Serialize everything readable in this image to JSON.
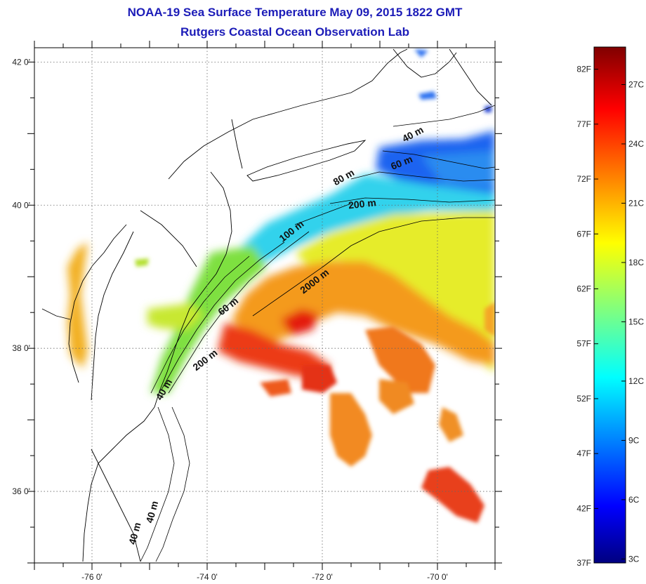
{
  "title": "NOAA-19 Sea Surface Temperature May 09, 2015 1822 GMT",
  "subtitle": "Rutgers Coastal Ocean Observation Lab",
  "lat_ticks": [
    {
      "value": 42,
      "label": "42 0'"
    },
    {
      "value": 40,
      "label": "40 0'"
    },
    {
      "value": 38,
      "label": "38 0'"
    },
    {
      "value": 36,
      "label": "36 0'"
    }
  ],
  "lon_ticks": [
    {
      "value": -76,
      "label": "-76 0'"
    },
    {
      "value": -74,
      "label": "-74 0'"
    },
    {
      "value": -72,
      "label": "-72 0'"
    },
    {
      "value": -70,
      "label": "-70 0'"
    }
  ],
  "map_extent": {
    "lon": [
      -77,
      -69
    ],
    "lat": [
      35,
      42.2
    ]
  },
  "contour_labels": [
    {
      "text": "40 m",
      "lon": -70.4,
      "lat": 40.95
    },
    {
      "text": "60 m",
      "lon": -70.6,
      "lat": 40.55
    },
    {
      "text": "80 m",
      "lon": -71.6,
      "lat": 40.35
    },
    {
      "text": "200 m",
      "lon": -71.3,
      "lat": 39.97
    },
    {
      "text": "100 m",
      "lon": -72.5,
      "lat": 39.6
    },
    {
      "text": "2000 m",
      "lon": -72.1,
      "lat": 38.9
    },
    {
      "text": "60 m",
      "lon": -73.6,
      "lat": 38.55
    },
    {
      "text": "200 m",
      "lon": -74.0,
      "lat": 37.8
    },
    {
      "text": "40 m",
      "lon": -74.7,
      "lat": 37.4
    },
    {
      "text": "40 m",
      "lon": -74.9,
      "lat": 35.7
    },
    {
      "text": "40 m",
      "lon": -75.2,
      "lat": 35.4
    }
  ],
  "colorbar": {
    "min_c": 2.8,
    "max_c": 28.9,
    "fahrenheit_labels": [
      "82F",
      "77F",
      "72F",
      "67F",
      "62F",
      "57F",
      "52F",
      "47F",
      "42F",
      "37F"
    ],
    "celsius_labels": [
      "27C",
      "24C",
      "21C",
      "18C",
      "15C",
      "12C",
      "9C",
      "6C",
      "3C"
    ],
    "colors": [
      "#000080",
      "#0000ff",
      "#00ffff",
      "#ffff00",
      "#ff0000",
      "#800000"
    ]
  },
  "colors": {
    "title": "#1c1cb8",
    "land_outline": "#000000",
    "grid": "#666666"
  }
}
